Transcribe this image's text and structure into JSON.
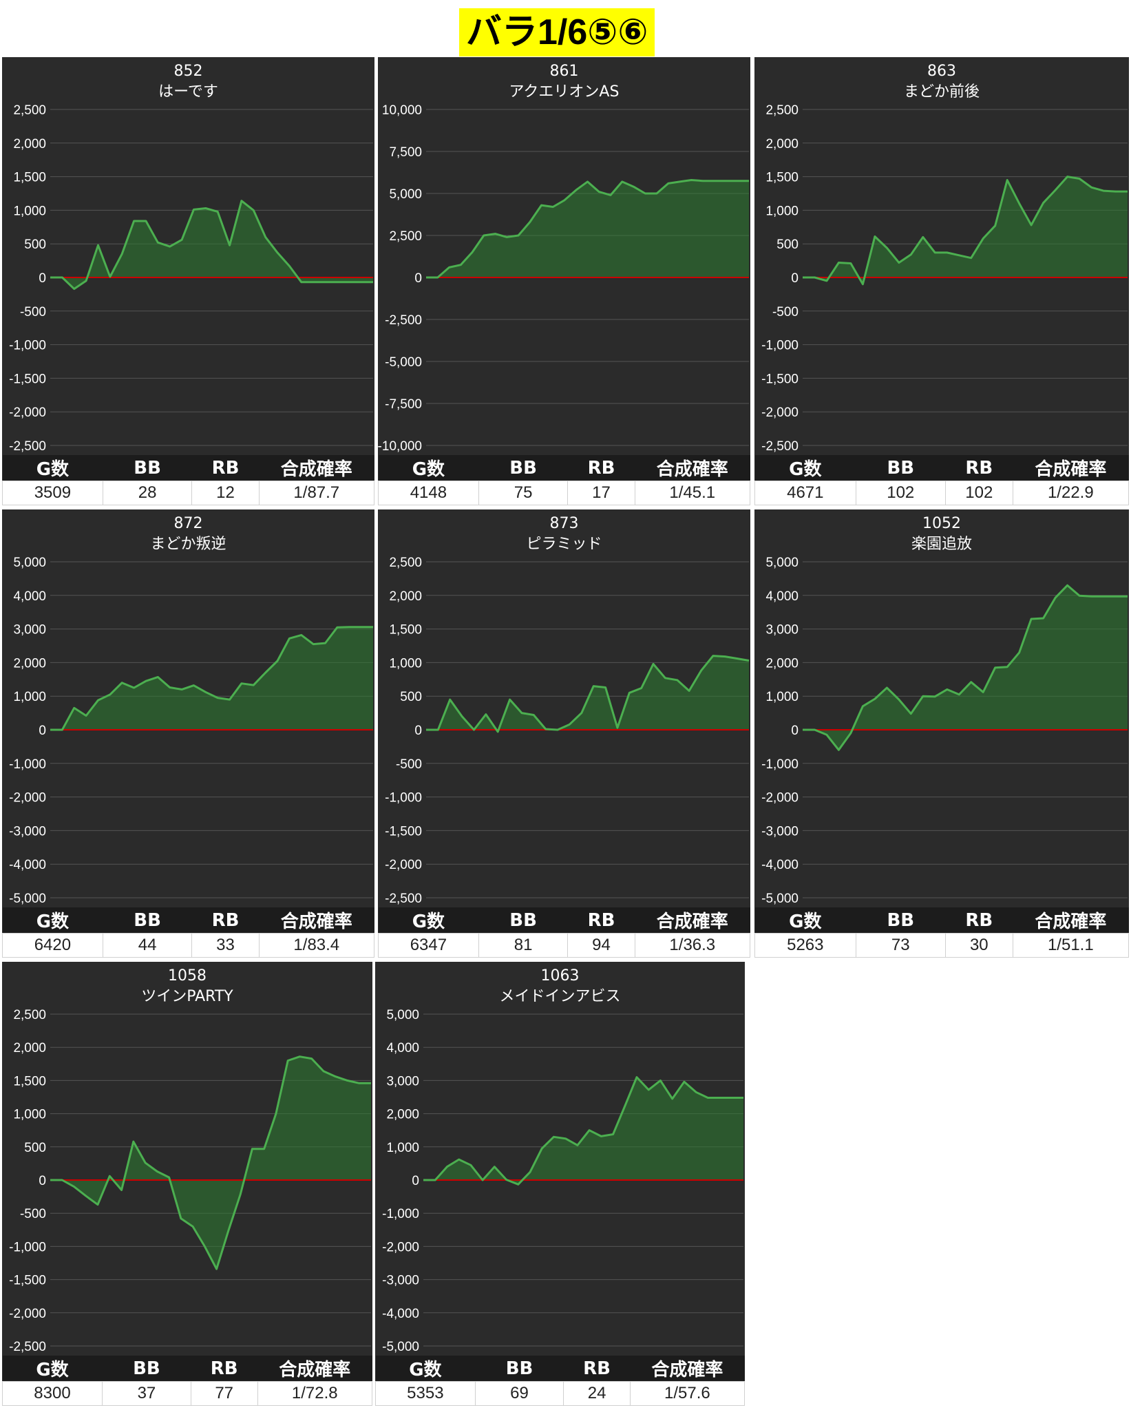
{
  "page_title": "バラ1/6⑤⑥",
  "stat_headers": [
    "G数",
    "BB",
    "RB",
    "合成確率"
  ],
  "colors": {
    "panel_bg": "#2b2b2b",
    "line": "#4caf50",
    "fill": "#2e7d32",
    "zero_line": "#cc0000",
    "grid": "#555555"
  },
  "chart_data": [
    {
      "type": "area",
      "number": "852",
      "name": "はーです",
      "ylim": [
        -2500,
        2500
      ],
      "yticks": [
        "2,500",
        "2,000",
        "1,500",
        "1,000",
        "500",
        "0",
        "-500",
        "-1,000",
        "-1,500",
        "-2,000",
        "-2,500"
      ],
      "values": [
        0,
        0,
        -170,
        -50,
        480,
        10,
        350,
        840,
        840,
        520,
        460,
        560,
        1010,
        1030,
        980,
        480,
        1140,
        1000,
        600,
        370,
        170,
        -70,
        -70,
        -70,
        -70,
        -70,
        -70,
        -70
      ],
      "stats": [
        "3509",
        "28",
        "12",
        "1/87.7"
      ]
    },
    {
      "type": "area",
      "number": "861",
      "name": "アクエリオンAS",
      "ylim": [
        -10000,
        10000
      ],
      "yticks": [
        "10,000",
        "7,500",
        "5,000",
        "2,500",
        "0",
        "-2,500",
        "-5,000",
        "-7,500",
        "-10,000"
      ],
      "values": [
        0,
        0,
        600,
        750,
        1500,
        2500,
        2600,
        2400,
        2500,
        3300,
        4300,
        4200,
        4600,
        5200,
        5700,
        5100,
        4900,
        5700,
        5400,
        5000,
        5000,
        5600,
        5700,
        5800,
        5750,
        5750,
        5750,
        5750,
        5750
      ],
      "stats": [
        "4148",
        "75",
        "17",
        "1/45.1"
      ]
    },
    {
      "type": "area",
      "number": "863",
      "name": "まどか前後",
      "ylim": [
        -2500,
        2500
      ],
      "yticks": [
        "2,500",
        "2,000",
        "1,500",
        "1,000",
        "500",
        "0",
        "-500",
        "-1,000",
        "-1,500",
        "-2,000",
        "-2,500"
      ],
      "values": [
        0,
        0,
        -50,
        220,
        210,
        -100,
        610,
        440,
        220,
        340,
        600,
        370,
        370,
        330,
        290,
        580,
        770,
        1450,
        1100,
        780,
        1110,
        1300,
        1500,
        1470,
        1340,
        1290,
        1280,
        1280
      ],
      "stats": [
        "4671",
        "102",
        "102",
        "1/22.9"
      ]
    },
    {
      "type": "area",
      "number": "872",
      "name": "まどか叛逆",
      "ylim": [
        -5000,
        5000
      ],
      "yticks": [
        "5,000",
        "4,000",
        "3,000",
        "2,000",
        "1,000",
        "0",
        "-1,000",
        "-2,000",
        "-3,000",
        "-4,000",
        "-5,000"
      ],
      "values": [
        0,
        0,
        650,
        420,
        880,
        1050,
        1400,
        1250,
        1450,
        1570,
        1260,
        1200,
        1320,
        1120,
        950,
        900,
        1380,
        1330,
        1700,
        2050,
        2720,
        2820,
        2550,
        2580,
        3050,
        3060,
        3060,
        3060
      ],
      "stats": [
        "6420",
        "44",
        "33",
        "1/83.4"
      ]
    },
    {
      "type": "area",
      "number": "873",
      "name": "ピラミッド",
      "ylim": [
        -2500,
        2500
      ],
      "yticks": [
        "2,500",
        "2,000",
        "1,500",
        "1,000",
        "500",
        "0",
        "-500",
        "-1,000",
        "-1,500",
        "-2,000",
        "-2,500"
      ],
      "values": [
        0,
        0,
        450,
        200,
        0,
        230,
        -30,
        450,
        250,
        220,
        10,
        0,
        80,
        250,
        650,
        630,
        30,
        550,
        620,
        980,
        770,
        740,
        580,
        880,
        1100,
        1090,
        1060,
        1030
      ],
      "stats": [
        "6347",
        "81",
        "94",
        "1/36.3"
      ]
    },
    {
      "type": "area",
      "number": "1052",
      "name": "楽園追放",
      "ylim": [
        -5000,
        5000
      ],
      "yticks": [
        "5,000",
        "4,000",
        "3,000",
        "2,000",
        "1,000",
        "0",
        "-1,000",
        "-2,000",
        "-3,000",
        "-4,000",
        "-5,000"
      ],
      "values": [
        0,
        0,
        -150,
        -600,
        -100,
        700,
        920,
        1250,
        900,
        480,
        1000,
        990,
        1200,
        1050,
        1420,
        1120,
        1850,
        1870,
        2300,
        3300,
        3320,
        3930,
        4300,
        3990,
        3970,
        3970,
        3970,
        3970
      ],
      "stats": [
        "5263",
        "73",
        "30",
        "1/51.1"
      ]
    },
    {
      "type": "area",
      "number": "1058",
      "name": "ツインPARTY",
      "ylim": [
        -2500,
        2500
      ],
      "yticks": [
        "2,500",
        "2,000",
        "1,500",
        "1,000",
        "500",
        "0",
        "-500",
        "-1,000",
        "-1,500",
        "-2,000",
        "-2,500"
      ],
      "values": [
        0,
        0,
        -100,
        -240,
        -370,
        60,
        -150,
        580,
        260,
        130,
        40,
        -580,
        -700,
        -1000,
        -1340,
        -760,
        -220,
        470,
        470,
        1000,
        1800,
        1860,
        1830,
        1640,
        1560,
        1500,
        1460,
        1460
      ],
      "stats": [
        "8300",
        "37",
        "77",
        "1/72.8"
      ]
    },
    {
      "type": "area",
      "number": "1063",
      "name": "メイドインアビス",
      "ylim": [
        -5000,
        5000
      ],
      "yticks": [
        "5,000",
        "4,000",
        "3,000",
        "2,000",
        "1,000",
        "0",
        "-1,000",
        "-2,000",
        "-3,000",
        "-4,000",
        "-5,000"
      ],
      "values": [
        0,
        0,
        400,
        620,
        450,
        0,
        400,
        10,
        -130,
        240,
        950,
        1300,
        1250,
        1050,
        1500,
        1320,
        1380,
        2230,
        3100,
        2720,
        3000,
        2450,
        2960,
        2650,
        2480,
        2480,
        2480,
        2480
      ],
      "stats": [
        "5353",
        "69",
        "24",
        "1/57.6"
      ]
    }
  ]
}
